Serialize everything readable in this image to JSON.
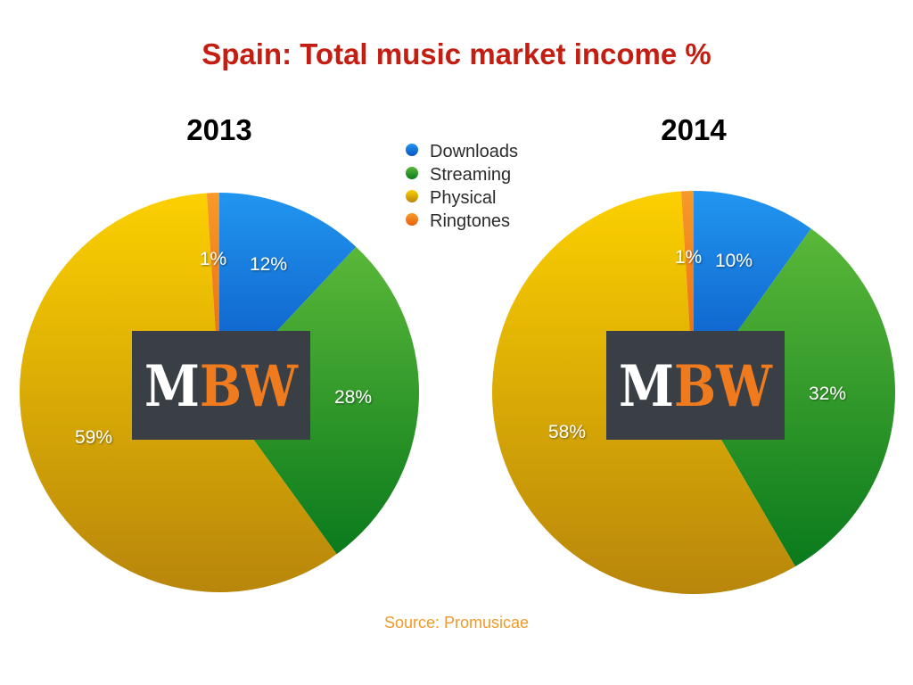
{
  "title": "Spain: Total music market income %",
  "source": "Source: Promusicae",
  "logo": {
    "left": "M",
    "right": "BW"
  },
  "colors": {
    "title": "#c41e12",
    "source": "#f09a2a",
    "logo_bg": "#3a3f45",
    "logo_left": "#ffffff",
    "logo_right": "#f07a1e"
  },
  "chart_data": [
    {
      "type": "pie",
      "title": "2013",
      "categories": [
        "Downloads",
        "Streaming",
        "Physical",
        "Ringtones"
      ],
      "values": [
        12,
        28,
        59,
        1
      ],
      "labels": [
        "12%",
        "28%",
        "59%",
        "1%"
      ]
    },
    {
      "type": "pie",
      "title": "2014",
      "categories": [
        "Downloads",
        "Streaming",
        "Physical",
        "Ringtones"
      ],
      "values": [
        10,
        32,
        58,
        1
      ],
      "labels": [
        "10%",
        "32%",
        "58%",
        "1%"
      ]
    }
  ],
  "legend": {
    "placement": "top-center",
    "items": [
      {
        "label": "Downloads",
        "color": "#1a7ee0"
      },
      {
        "label": "Streaming",
        "color": "#2e9a2c"
      },
      {
        "label": "Physical",
        "color": "#e6b800"
      },
      {
        "label": "Ringtones",
        "color": "#f07010"
      }
    ]
  }
}
